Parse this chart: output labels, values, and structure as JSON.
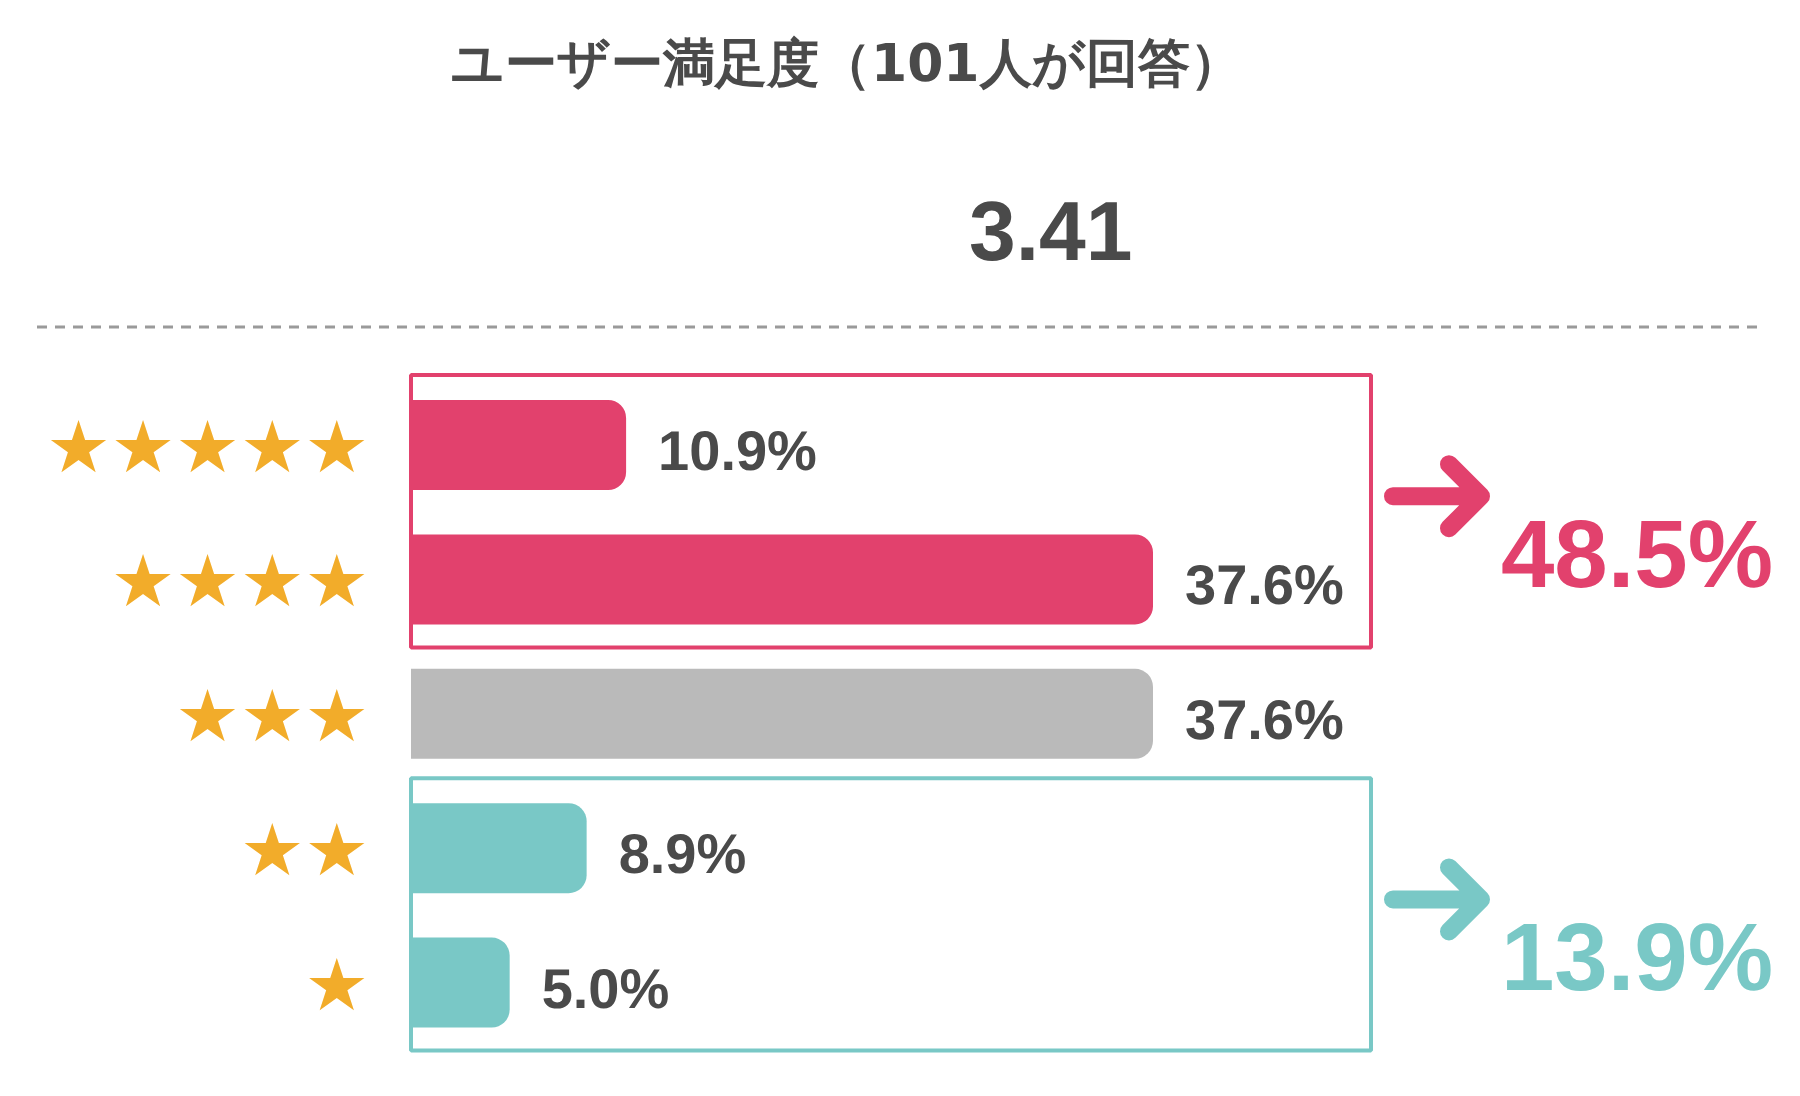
{
  "chart_data": {
    "type": "bar",
    "orientation": "horizontal",
    "title": "ユーザー満足度（101人が回答）",
    "subtitle": "3.41",
    "categories": [
      "★★★★★",
      "★★★★",
      "★★★",
      "★★",
      "★"
    ],
    "values": [
      10.9,
      37.6,
      37.6,
      8.9,
      5.0
    ],
    "colors": [
      "#e2416d",
      "#e2416d",
      "#bababa",
      "#79c8c6",
      "#79c8c6"
    ],
    "value_labels": [
      "10.9%",
      "37.6%",
      "37.6%",
      "8.9%",
      "5.0%"
    ],
    "annotations": [
      "48.5%",
      "13.9%"
    ]
  }
}
